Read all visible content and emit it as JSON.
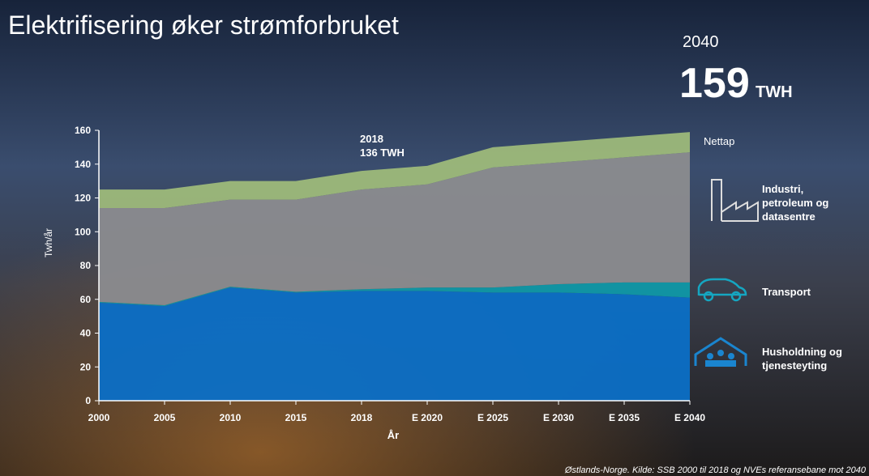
{
  "chart_data": {
    "type": "stacked-area",
    "title": "Elektrifisering øker strømforbruket",
    "headline_year": "2040",
    "headline_value": 159,
    "headline_unit": "TWH",
    "annotation_year": "2018",
    "annotation_value": "136 TWH",
    "y_label": "Twh/år",
    "x_label": "År",
    "footnote": "Østlands-Norge. Kilde: SSB 2000 til 2018 og NVEs referansebane mot 2040",
    "categories": [
      "2000",
      "2005",
      "2010",
      "2015",
      "2018",
      "E 2020",
      "E 2025",
      "E 2030",
      "E 2035",
      "E 2040"
    ],
    "series": [
      {
        "name": "Husholdning og tjenesteyting",
        "color": "#0b6fc6",
        "values": [
          58,
          56,
          67,
          64,
          65,
          65,
          64,
          64,
          63,
          61
        ]
      },
      {
        "name": "Transport",
        "color": "#0f98a6",
        "values": [
          0.5,
          0.5,
          0.5,
          0.5,
          1,
          2,
          3,
          5,
          7,
          9
        ]
      },
      {
        "name": "Industri, petroleum og datasentre",
        "color": "#8b8c8f",
        "values": [
          55.5,
          57.5,
          51.5,
          54.5,
          59,
          61,
          71,
          72,
          74,
          77
        ]
      },
      {
        "name": "Nettap",
        "color": "#9db97a",
        "values": [
          11,
          11,
          11,
          11,
          11,
          11,
          12,
          12,
          12,
          12
        ]
      }
    ],
    "ylim": [
      0,
      160
    ],
    "yticks": [
      0,
      20,
      40,
      60,
      80,
      100,
      120,
      140,
      160
    ]
  }
}
